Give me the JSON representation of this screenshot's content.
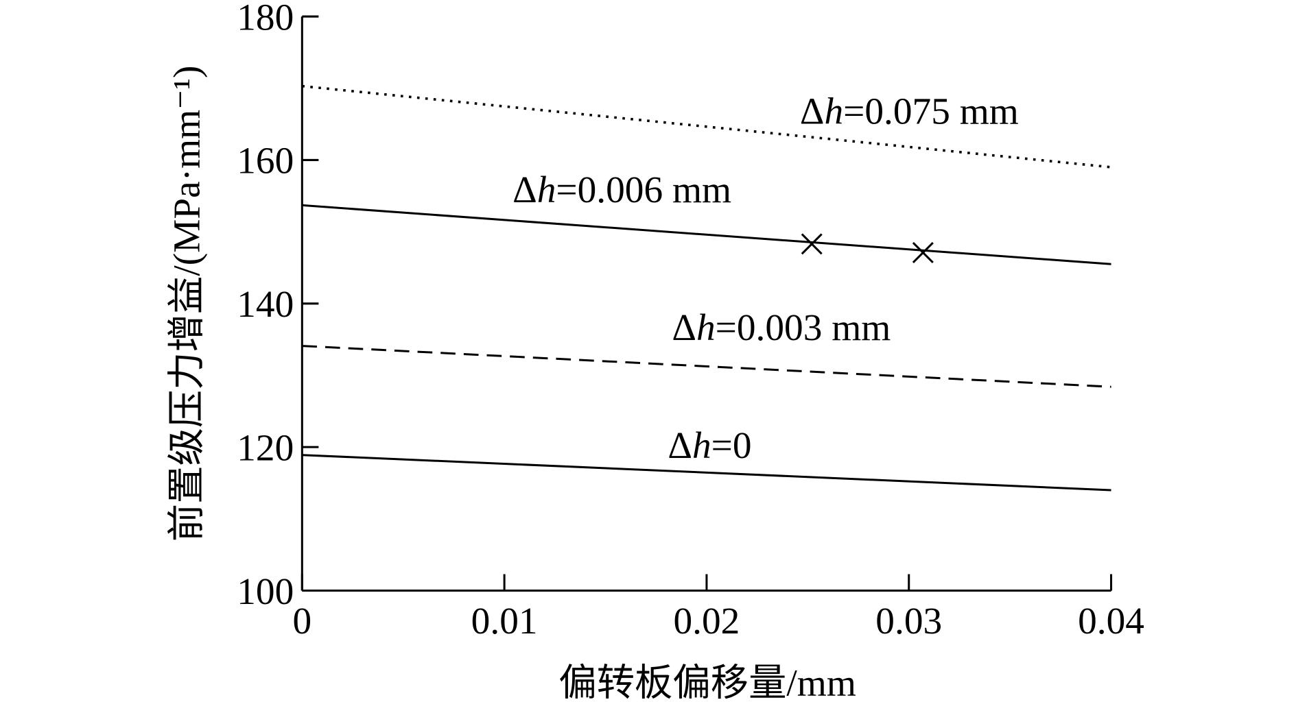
{
  "chart_data": {
    "type": "line",
    "xlabel": "偏转板偏移量/mm",
    "ylabel": "前置级压力增益/(MPa·mm⁻¹)",
    "x": [
      0,
      0.04
    ],
    "xlim": [
      0,
      0.04
    ],
    "xticks": [
      0,
      0.01,
      0.02,
      0.03,
      0.04
    ],
    "ylim": [
      100,
      180
    ],
    "yticks": [
      100,
      120,
      140,
      160,
      180
    ],
    "series": [
      {
        "name": "Δh=0",
        "color": "#000000",
        "dash": "solid",
        "values": [
          118.9,
          114.0
        ]
      },
      {
        "name": "Δh=0.003 mm",
        "color": "#000000",
        "dash": "dashed",
        "values": [
          134.1,
          128.4
        ]
      },
      {
        "name": "Δh=0.006 mm",
        "color": "#000000",
        "dash": "solid",
        "values": [
          153.7,
          145.5
        ]
      },
      {
        "name": "Δh=0.075 mm",
        "color": "#000000",
        "dash": "dotted",
        "values": [
          170.3,
          159.0
        ]
      }
    ],
    "markers": {
      "x": [
        0.0252,
        0.0307
      ],
      "values": [
        148.3,
        147.1
      ]
    }
  }
}
